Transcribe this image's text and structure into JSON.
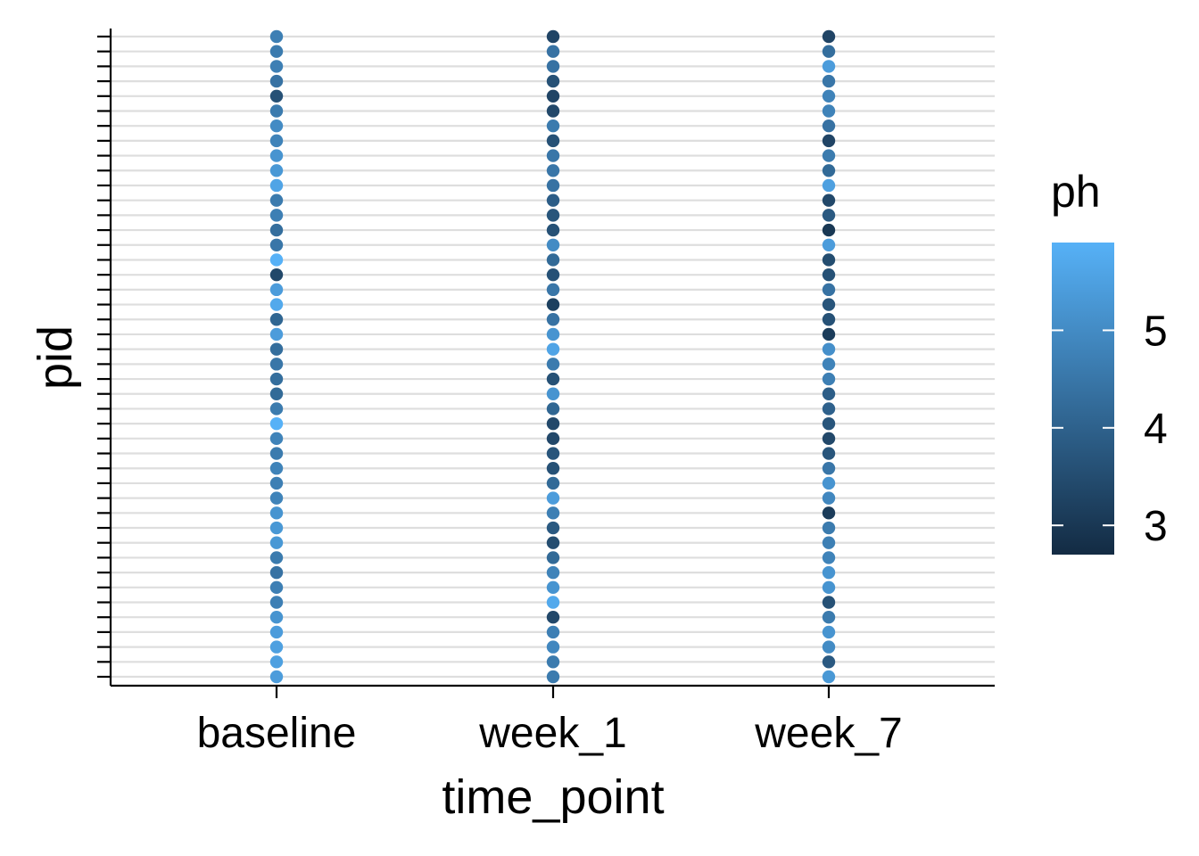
{
  "chart_data": {
    "type": "scatter",
    "xlabel": "time_point",
    "ylabel": "pid",
    "x_categories": [
      "baseline",
      "week_1",
      "week_7"
    ],
    "n_participants": 44,
    "color_variable": "ph",
    "color_scale": {
      "low_color": "#132B43",
      "high_color": "#56B1F7",
      "min": 2.7,
      "max": 5.9,
      "legend_ticks": [
        3,
        4,
        5
      ],
      "legend_tick_labels": [
        "3",
        "4",
        "5"
      ]
    },
    "legend_title": "ph",
    "grid": "horizontal major only",
    "legend_position": "right",
    "series": [
      {
        "time_point": "baseline",
        "ph": [
          4.7,
          4.6,
          4.7,
          4.4,
          3.6,
          4.6,
          5.0,
          4.8,
          5.2,
          5.3,
          5.6,
          4.6,
          4.7,
          4.3,
          4.5,
          5.9,
          3.4,
          5.4,
          5.7,
          4.1,
          5.4,
          4.3,
          4.5,
          4.3,
          4.2,
          4.6,
          5.9,
          4.8,
          4.6,
          4.8,
          4.7,
          4.8,
          5.2,
          5.3,
          5.3,
          4.6,
          4.4,
          4.7,
          4.7,
          5.2,
          5.4,
          5.5,
          5.5,
          5.4
        ]
      },
      {
        "time_point": "week_1",
        "ph": [
          3.3,
          4.4,
          4.4,
          3.6,
          3.3,
          3.4,
          4.6,
          3.6,
          4.5,
          4.5,
          4.4,
          3.9,
          3.7,
          3.6,
          5.0,
          4.2,
          3.6,
          4.5,
          3.2,
          4.4,
          5.2,
          5.6,
          4.6,
          3.6,
          5.2,
          4.1,
          3.4,
          3.4,
          3.7,
          3.6,
          4.2,
          5.4,
          4.7,
          3.8,
          3.5,
          4.2,
          4.8,
          5.2,
          5.7,
          3.4,
          4.7,
          4.9,
          4.6,
          4.6
        ]
      },
      {
        "time_point": "week_7",
        "ph": [
          3.3,
          4.3,
          5.4,
          4.5,
          4.8,
          4.8,
          4.4,
          3.3,
          4.6,
          4.2,
          5.5,
          3.4,
          3.8,
          3.0,
          5.4,
          3.5,
          3.6,
          4.4,
          3.7,
          3.6,
          3.1,
          5.1,
          4.8,
          4.7,
          3.9,
          4.0,
          3.7,
          3.4,
          3.7,
          4.5,
          5.2,
          4.9,
          3.1,
          4.6,
          4.7,
          4.8,
          5.2,
          5.2,
          3.6,
          4.6,
          5.2,
          5.0,
          3.8,
          5.3
        ]
      }
    ]
  }
}
